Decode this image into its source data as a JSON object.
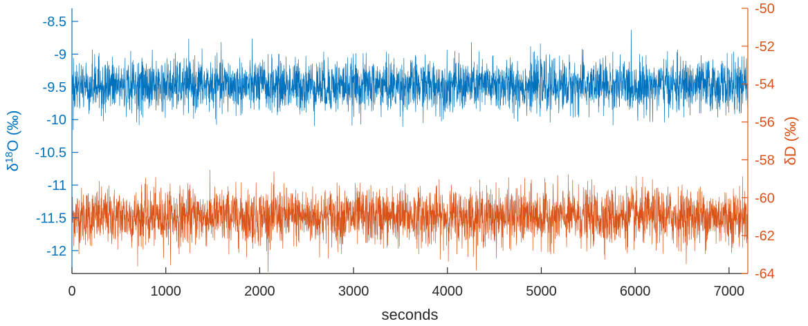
{
  "chart_data": {
    "type": "line",
    "title": "",
    "xlabel": "seconds",
    "xlim": [
      0,
      7200
    ],
    "x_ticks": [
      "0",
      "1000",
      "2000",
      "3000",
      "4000",
      "5000",
      "6000",
      "7000"
    ],
    "y_left": {
      "label_main": "δ",
      "label_sup": "18",
      "label_rest": "O (‰)",
      "lim": [
        -12.35,
        -8.3
      ],
      "ticks": [
        "-8.5",
        "-9",
        "-9.5",
        "-10",
        "-10.5",
        "-11",
        "-11.5",
        "-12"
      ],
      "color": "#0072BD"
    },
    "y_right": {
      "label": "δD (‰)",
      "lim": [
        -64,
        -50
      ],
      "ticks": [
        "-50",
        "-52",
        "-54",
        "-56",
        "-58",
        "-60",
        "-62",
        "-64"
      ],
      "color": "#D95319"
    },
    "series": [
      {
        "axis": "left",
        "color": "#0072BD",
        "x_range": [
          0,
          7200
        ],
        "mean": -9.48,
        "std": 0.2,
        "min": -10.3,
        "max": -8.63
      },
      {
        "axis": "right",
        "color": "#D95319",
        "x_range": [
          0,
          7200
        ],
        "mean": -61.0,
        "std": 0.75,
        "min": -63.9,
        "max": -58.1
      }
    ],
    "grid": false
  }
}
